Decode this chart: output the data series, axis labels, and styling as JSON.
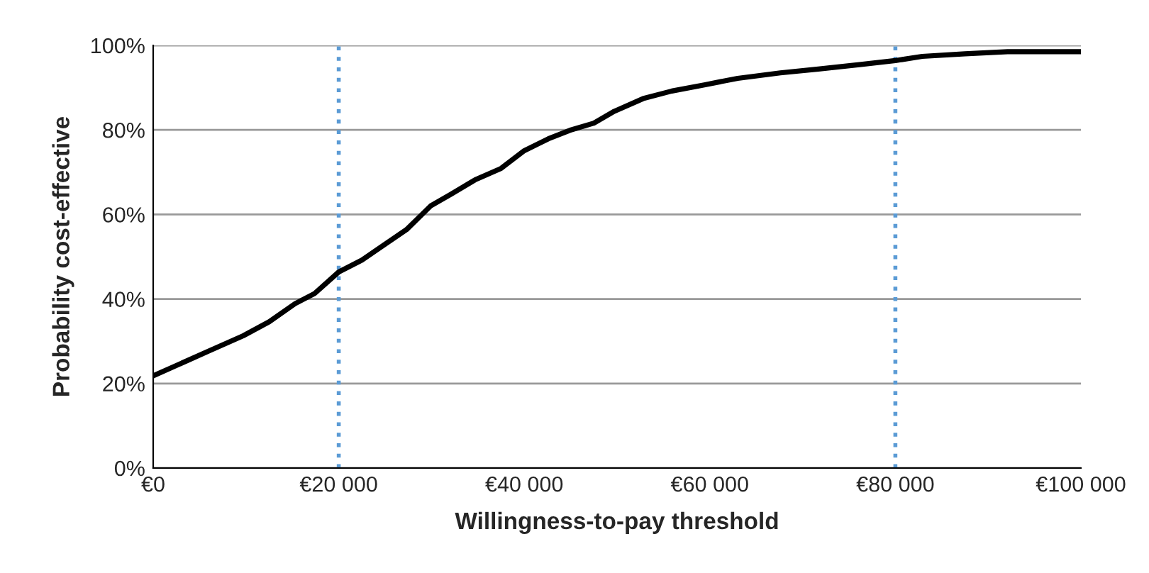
{
  "chart_data": {
    "type": "line",
    "xlabel": "Willingness-to-pay threshold",
    "ylabel": "Probability cost-effective",
    "series": [
      {
        "color": "#000000",
        "x": [
          0,
          5900,
          9700,
          12500,
          15300,
          17400,
          20000,
          22500,
          24700,
          27300,
          29900,
          32100,
          34700,
          37500,
          40000,
          42600,
          44900,
          47500,
          49700,
          52800,
          55900,
          59500,
          63000,
          67600,
          71700,
          76300,
          80000,
          82900,
          87500,
          92100,
          100000
        ],
        "values": [
          21.8,
          27.6,
          31.3,
          34.6,
          38.9,
          41.3,
          46.4,
          49.2,
          52.5,
          56.4,
          62.0,
          64.8,
          68.2,
          70.9,
          75.1,
          77.9,
          79.9,
          81.6,
          84.4,
          87.4,
          89.2,
          90.7,
          92.2,
          93.5,
          94.4,
          95.5,
          96.4,
          97.4,
          98.0,
          98.5,
          98.5
        ]
      }
    ],
    "xlim": [
      0,
      100000
    ],
    "xticks": [
      {
        "value": 0,
        "label": "€0"
      },
      {
        "value": 20000,
        "label": "€20 000"
      },
      {
        "value": 40000,
        "label": "€40 000"
      },
      {
        "value": 60000,
        "label": "€60 000"
      },
      {
        "value": 80000,
        "label": "€80 000"
      },
      {
        "value": 100000,
        "label": "€100 000"
      }
    ],
    "ylim": [
      0,
      100
    ],
    "yticks": [
      {
        "value": 0,
        "label": "0%"
      },
      {
        "value": 20,
        "label": "20%"
      },
      {
        "value": 40,
        "label": "40%"
      },
      {
        "value": 60,
        "label": "60%"
      },
      {
        "value": 80,
        "label": "80%"
      },
      {
        "value": 100,
        "label": "100%"
      }
    ],
    "grid": "y",
    "line_style": "solid",
    "ref_lines": [
      {
        "axis": "x",
        "value": 20000,
        "color": "#5b9bd5",
        "line_style": "dotted"
      },
      {
        "axis": "x",
        "value": 80000,
        "color": "#5b9bd5",
        "line_style": "dotted"
      }
    ]
  }
}
